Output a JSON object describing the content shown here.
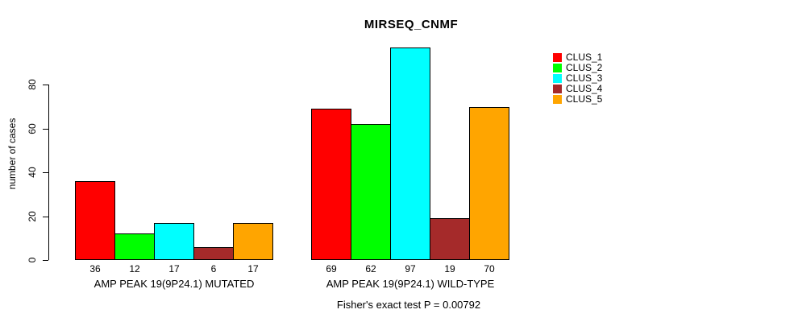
{
  "chart": {
    "title": "MIRSEQ_CNMF",
    "ylabel": "number of cases",
    "caption": "Fisher's exact test P = 0.00792"
  },
  "chart_data": {
    "type": "bar",
    "title": "MIRSEQ_CNMF",
    "xlabel": "",
    "ylabel": "number of cases",
    "ylim": [
      0,
      80
    ],
    "yticks": [
      0,
      20,
      40,
      60,
      80
    ],
    "grid": false,
    "legend_position": "top-right-outside",
    "categories": [
      "AMP PEAK 19(9P24.1) MUTATED",
      "AMP PEAK 19(9P24.1) WILD-TYPE"
    ],
    "series": [
      {
        "name": "CLUS_1",
        "color": "#FF0000",
        "values": [
          36,
          69
        ]
      },
      {
        "name": "CLUS_2",
        "color": "#00FF00",
        "values": [
          12,
          62
        ]
      },
      {
        "name": "CLUS_3",
        "color": "#00FFFF",
        "values": [
          17,
          97
        ]
      },
      {
        "name": "CLUS_4",
        "color": "#A52A2A",
        "values": [
          6,
          19
        ]
      },
      {
        "name": "CLUS_5",
        "color": "#FFA500",
        "values": [
          17,
          70
        ]
      }
    ],
    "bar_value_labels": [
      [
        36,
        12,
        17,
        6,
        17
      ],
      [
        69,
        62,
        97,
        19,
        70
      ]
    ],
    "annotation": "Fisher's exact test P = 0.00792"
  }
}
